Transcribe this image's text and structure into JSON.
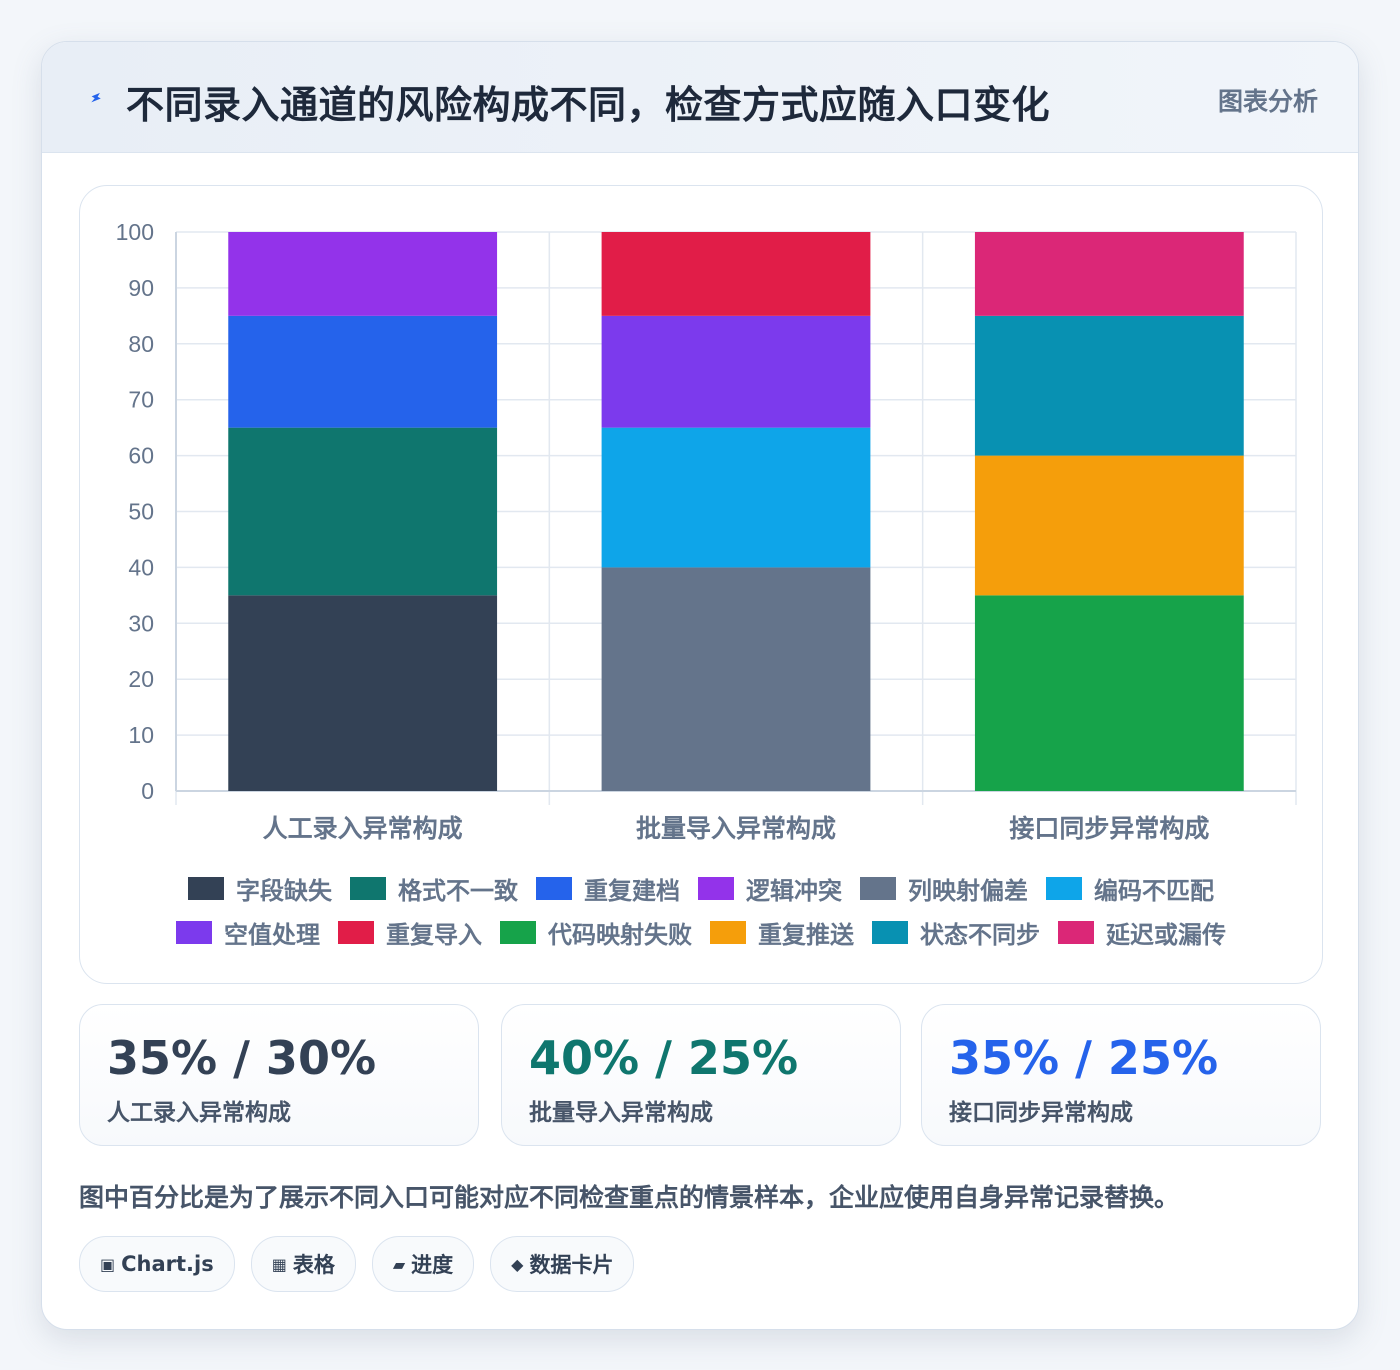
{
  "header": {
    "title": "不同录入通道的风险构成不同，检查方式应随入口变化",
    "tag": "图表分析",
    "icon": "bolt-icon",
    "icon_color": "#2563eb"
  },
  "chart_data": {
    "type": "bar",
    "stacked": true,
    "categories": [
      "人工录入异常构成",
      "批量导入异常构成",
      "接口同步异常构成"
    ],
    "ylim": [
      0,
      100
    ],
    "yticks": [
      0,
      10,
      20,
      30,
      40,
      50,
      60,
      70,
      80,
      90,
      100
    ],
    "grid": true,
    "legend_position": "bottom",
    "series": [
      {
        "name": "字段缺失",
        "color": "#334155",
        "values": [
          35,
          null,
          null
        ]
      },
      {
        "name": "格式不一致",
        "color": "#0f766e",
        "values": [
          30,
          null,
          null
        ]
      },
      {
        "name": "重复建档",
        "color": "#2563eb",
        "values": [
          20,
          null,
          null
        ]
      },
      {
        "name": "逻辑冲突",
        "color": "#9333ea",
        "values": [
          15,
          null,
          null
        ]
      },
      {
        "name": "列映射偏差",
        "color": "#64748b",
        "values": [
          null,
          40,
          null
        ]
      },
      {
        "name": "编码不匹配",
        "color": "#0ea5e9",
        "values": [
          null,
          25,
          null
        ]
      },
      {
        "name": "空值处理",
        "color": "#7c3aed",
        "values": [
          null,
          20,
          null
        ]
      },
      {
        "name": "重复导入",
        "color": "#e11d48",
        "values": [
          null,
          15,
          null
        ]
      },
      {
        "name": "代码映射失败",
        "color": "#16a34a",
        "values": [
          null,
          null,
          35
        ]
      },
      {
        "name": "重复推送",
        "color": "#f59e0b",
        "values": [
          null,
          null,
          25
        ]
      },
      {
        "name": "状态不同步",
        "color": "#0891b2",
        "values": [
          null,
          null,
          25
        ]
      },
      {
        "name": "延迟或漏传",
        "color": "#db2777",
        "values": [
          null,
          null,
          15
        ]
      }
    ]
  },
  "stats": [
    {
      "value": "35% / 30%",
      "label": "人工录入异常构成",
      "color": "#334155"
    },
    {
      "value": "40% / 25%",
      "label": "批量导入异常构成",
      "color": "#0f766e"
    },
    {
      "value": "35% / 25%",
      "label": "接口同步异常构成",
      "color": "#2563eb"
    }
  ],
  "note": "图中百分比是为了展示不同入口可能对应不同检查重点的情景样本，企业应使用自身异常记录替换。",
  "chips": [
    {
      "icon": "▣",
      "label": "Chart.js"
    },
    {
      "icon": "▦",
      "label": "表格"
    },
    {
      "icon": "▰",
      "label": "进度"
    },
    {
      "icon": "◆",
      "label": "数据卡片"
    }
  ]
}
